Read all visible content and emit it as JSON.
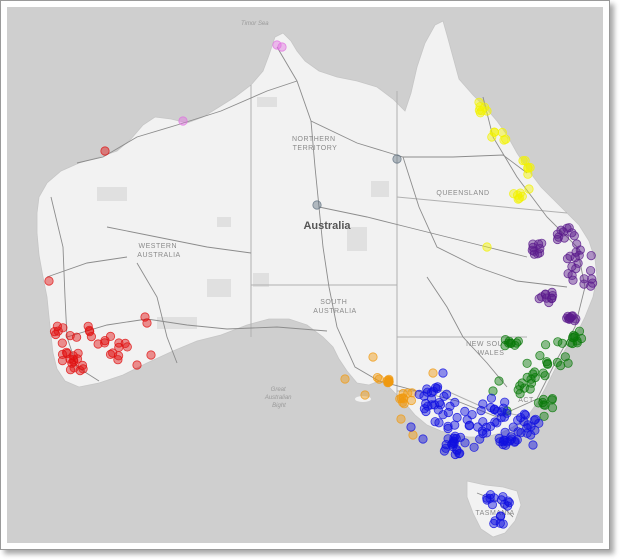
{
  "map": {
    "country_label": "Australia",
    "regions": [
      {
        "name": "northern-territory",
        "lines": [
          "NORTHERN",
          "TERRITORY"
        ]
      },
      {
        "name": "queensland",
        "lines": [
          "QUEENSLAND"
        ]
      },
      {
        "name": "western-australia",
        "lines": [
          "WESTERN",
          "AUSTRALIA"
        ]
      },
      {
        "name": "south-australia",
        "lines": [
          "SOUTH",
          "AUSTRALIA"
        ]
      },
      {
        "name": "new-south-wales",
        "lines": [
          "NEW SOUTH",
          "WALES"
        ]
      },
      {
        "name": "act",
        "lines": [
          "ACT"
        ]
      },
      {
        "name": "tasmania",
        "lines": [
          "TASMANIA"
        ]
      }
    ],
    "seas": [
      {
        "name": "timor-sea",
        "lines": [
          "Timor Sea"
        ]
      },
      {
        "name": "great-australian-bight",
        "lines": [
          "Great",
          "Australian",
          "Bight"
        ]
      }
    ],
    "colors": {
      "ocean": "#cfcfcf",
      "land": "#f2f2f2",
      "roads": "#8c8c8c",
      "borders": "#b0b0b0",
      "cluster_red": "#e01010",
      "cluster_yellow": "#f2f200",
      "cluster_purple": "#5a1a8c",
      "cluster_green": "#0a7a0a",
      "cluster_orange": "#f09a10",
      "cluster_blue": "#1010e0",
      "cluster_pink": "#e070e0",
      "cluster_gray": "#607080"
    }
  }
}
